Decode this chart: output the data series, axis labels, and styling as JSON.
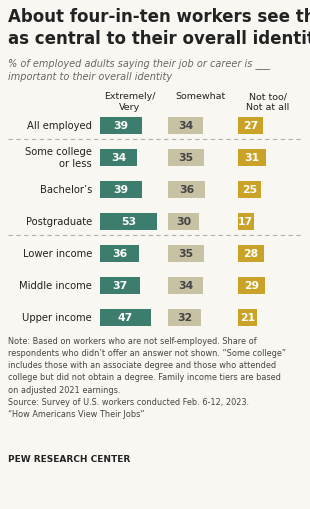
{
  "title": "About four-in-ten workers see their job\nas central to their overall identity",
  "subtitle": "% of employed adults saying their job or career is ___\nimportant to their overall identity",
  "categories": [
    "All employed",
    "Some college\nor less",
    "Bachelor’s",
    "Postgraduate",
    "Lower income",
    "Middle income",
    "Upper income"
  ],
  "col_headers": [
    "Extremely/\nVery",
    "Somewhat",
    "Not too/\nNot at all"
  ],
  "extremely_very": [
    39,
    34,
    39,
    53,
    36,
    37,
    47
  ],
  "somewhat": [
    34,
    35,
    36,
    30,
    35,
    34,
    32
  ],
  "not_at_all": [
    27,
    31,
    25,
    17,
    28,
    29,
    21
  ],
  "color_green": "#3d7d6e",
  "color_tan": "#c8c2a5",
  "color_gold": "#c9a227",
  "note_text": "Note: Based on workers who are not self-employed. Share of\nrespondents who didn’t offer an answer not shown. “Some college”\nincludes those with an associate degree and those who attended\ncollege but did not obtain a degree. Family income tiers are based\non adjusted 2021 earnings.\nSource: Survey of U.S. workers conducted Feb. 6-12, 2023.\n“How Americans View Their Jobs”",
  "source_bold": "PEW RESEARCH CENTER",
  "separator_after_rows": [
    0,
    3
  ],
  "bg_color": "#f9f7f2",
  "text_color": "#222222",
  "note_color": "#444444"
}
